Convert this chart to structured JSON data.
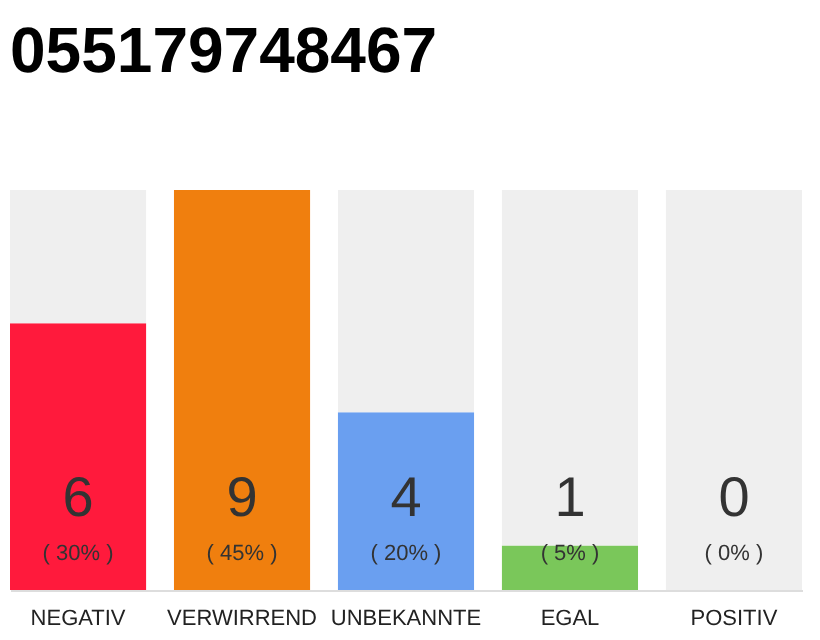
{
  "chart_data": {
    "type": "bar",
    "title": "055179748467",
    "categories": [
      "NEGATIV",
      "VERWIRREND",
      "UNBEKANNTE",
      "EGAL",
      "POSITIV"
    ],
    "stacked": true,
    "series": [
      {
        "colors": [
          "#ff1a3c",
          "#f07f0e",
          "#6a9ff0",
          "#7ac75a",
          "#cccccc"
        ],
        "values": [
          6,
          9,
          4,
          1,
          0
        ],
        "value_labels": [
          "6",
          "9",
          "4",
          "1",
          null
        ]
      },
      {
        "color": "#efefef",
        "values": [
          3,
          0,
          5,
          8,
          9
        ]
      }
    ],
    "ylim": [
      0,
      9
    ],
    "tick_labels": "x",
    "grid": false,
    "annotations": [
      "( 30% )",
      "( 45% )",
      "( 20% )",
      "( 5% )",
      "( 0% )",
      {
        "text": "0",
        "x": "POSITIV",
        "y": 0
      }
    ]
  }
}
